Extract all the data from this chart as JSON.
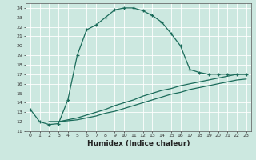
{
  "xlabel": "Humidex (Indice chaleur)",
  "background_color": "#cce8e0",
  "line_color": "#1a6b5a",
  "xlim": [
    -0.5,
    23.5
  ],
  "ylim": [
    11,
    24.5
  ],
  "xticks": [
    0,
    1,
    2,
    3,
    4,
    5,
    6,
    7,
    8,
    9,
    10,
    11,
    12,
    13,
    14,
    15,
    16,
    17,
    18,
    19,
    20,
    21,
    22,
    23
  ],
  "yticks": [
    11,
    12,
    13,
    14,
    15,
    16,
    17,
    18,
    19,
    20,
    21,
    22,
    23,
    24
  ],
  "curve1_x": [
    0,
    1,
    2,
    3,
    4,
    5,
    6,
    7,
    8,
    9,
    10,
    11,
    12,
    13,
    14,
    15,
    16,
    17,
    18,
    19,
    20,
    21,
    22,
    23
  ],
  "curve1_y": [
    13.3,
    12.0,
    11.7,
    11.8,
    14.3,
    19.0,
    21.7,
    22.2,
    23.0,
    23.8,
    24.0,
    24.0,
    23.7,
    23.2,
    22.5,
    21.3,
    20.0,
    17.5,
    17.2,
    17.0,
    17.0,
    17.0,
    17.0,
    17.0
  ],
  "curve2_x": [
    2,
    3,
    4,
    5,
    6,
    7,
    8,
    9,
    10,
    11,
    12,
    13,
    14,
    15,
    16,
    17,
    18,
    19,
    20,
    21,
    22,
    23
  ],
  "curve2_y": [
    12.0,
    12.0,
    12.2,
    12.4,
    12.7,
    13.0,
    13.3,
    13.7,
    14.0,
    14.3,
    14.7,
    15.0,
    15.3,
    15.5,
    15.8,
    16.0,
    16.2,
    16.4,
    16.6,
    16.8,
    17.0,
    17.0
  ],
  "curve3_x": [
    2,
    3,
    4,
    5,
    6,
    7,
    8,
    9,
    10,
    11,
    12,
    13,
    14,
    15,
    16,
    17,
    18,
    19,
    20,
    21,
    22,
    23
  ],
  "curve3_y": [
    12.0,
    12.0,
    12.1,
    12.2,
    12.4,
    12.6,
    12.9,
    13.1,
    13.4,
    13.7,
    14.0,
    14.3,
    14.6,
    14.9,
    15.1,
    15.4,
    15.6,
    15.8,
    16.0,
    16.2,
    16.4,
    16.5
  ]
}
